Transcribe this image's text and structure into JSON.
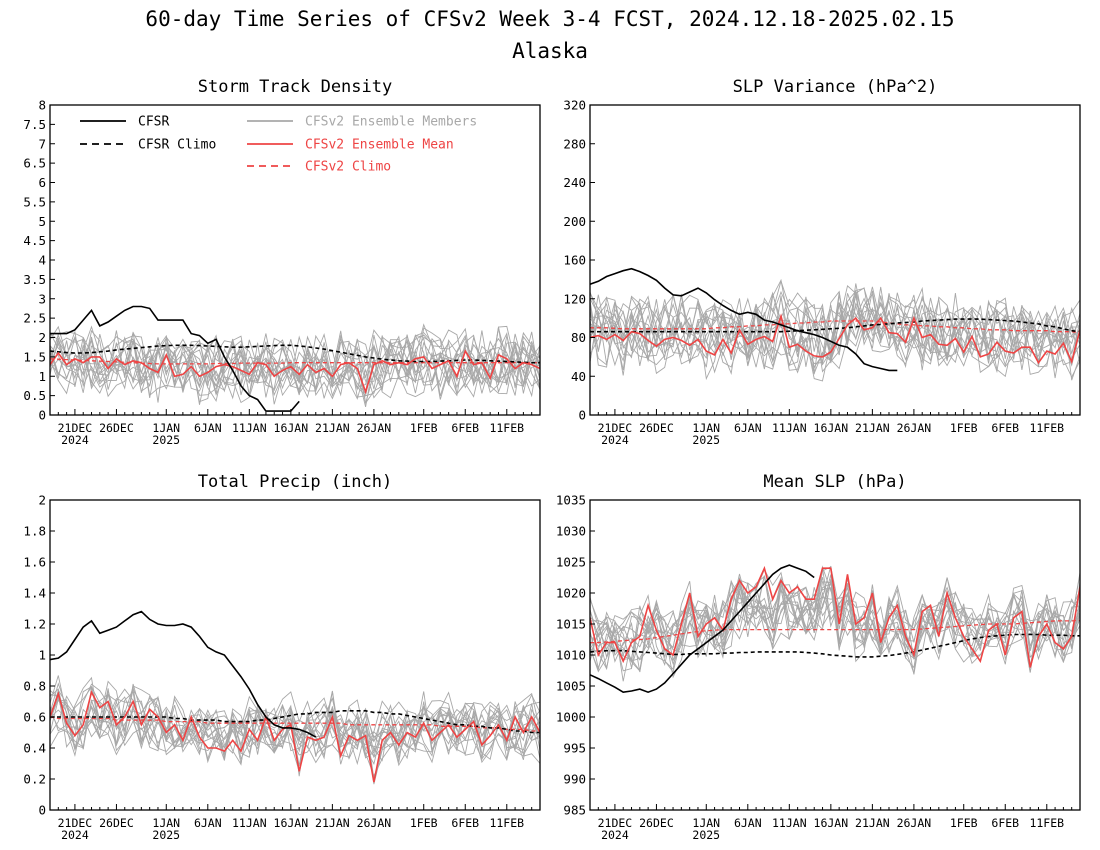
{
  "figure": {
    "title": "60-day Time Series of CFSv2 Week 3-4 FCST, 2024.12.18-2025.02.15",
    "region": "Alaska"
  },
  "colors": {
    "obs": "#000000",
    "model": "#ee4444",
    "members": "#a8a8a8",
    "axis": "#000000"
  },
  "legend": {
    "cfsr": "CFSR",
    "cfsr_climo": "CFSR Climo",
    "members": "CFSv2 Ensemble Members",
    "ens_mean": "CFSv2 Ensemble Mean",
    "cfsv2_climo": "CFSv2 Climo"
  },
  "chart_data": [
    {
      "id": "storm",
      "type": "line",
      "title": "Storm Track Density",
      "x_unit": "day index from 2024-12-18 (0-59)",
      "x_ticks": [
        {
          "x": 3,
          "label": "21DEC",
          "sub": "2024"
        },
        {
          "x": 8,
          "label": "26DEC",
          "sub": ""
        },
        {
          "x": 14,
          "label": "1JAN",
          "sub": "2025"
        },
        {
          "x": 19,
          "label": "6JAN",
          "sub": ""
        },
        {
          "x": 24,
          "label": "11JAN",
          "sub": ""
        },
        {
          "x": 29,
          "label": "16JAN",
          "sub": ""
        },
        {
          "x": 34,
          "label": "21JAN",
          "sub": ""
        },
        {
          "x": 39,
          "label": "26JAN",
          "sub": ""
        },
        {
          "x": 45,
          "label": "1FEB",
          "sub": ""
        },
        {
          "x": 50,
          "label": "6FEB",
          "sub": ""
        },
        {
          "x": 55,
          "label": "11FEB",
          "sub": ""
        }
      ],
      "ylim": [
        0,
        8
      ],
      "y_ticks": [
        0,
        0.5,
        1,
        1.5,
        2,
        2.5,
        3,
        3.5,
        4,
        4.5,
        5,
        5.5,
        6,
        6.5,
        7,
        7.5,
        8
      ],
      "y_tick_labels": [
        "0",
        "0.5",
        "1",
        "1.5",
        "2",
        "2.5",
        "3",
        "3.5",
        "4",
        "4.5",
        "5",
        "5.5",
        "6",
        "6.5",
        "7",
        "7.5",
        "8"
      ],
      "member_count": 16,
      "member_spread": 0.75,
      "cfsr": {
        "x0": 0,
        "values": [
          2.1,
          2.1,
          2.1,
          2.2,
          2.45,
          2.7,
          2.3,
          2.4,
          2.55,
          2.7,
          2.8,
          2.8,
          2.75,
          2.45,
          2.45,
          2.45,
          2.45,
          2.1,
          2.05,
          1.85,
          1.95,
          1.5,
          1.15,
          0.75,
          0.5,
          0.4,
          0.1,
          0.1,
          0.1,
          0.1,
          0.35
        ]
      },
      "cfsr_climo": [
        1.65,
        1.63,
        1.61,
        1.6,
        1.6,
        1.61,
        1.63,
        1.65,
        1.68,
        1.7,
        1.72,
        1.74,
        1.76,
        1.78,
        1.79,
        1.8,
        1.8,
        1.8,
        1.79,
        1.78,
        1.77,
        1.76,
        1.75,
        1.75,
        1.76,
        1.77,
        1.78,
        1.79,
        1.8,
        1.8,
        1.78,
        1.76,
        1.73,
        1.7,
        1.66,
        1.62,
        1.58,
        1.54,
        1.5,
        1.47,
        1.44,
        1.42,
        1.4,
        1.39,
        1.38,
        1.38,
        1.38,
        1.39,
        1.4,
        1.41,
        1.42,
        1.42,
        1.41,
        1.4,
        1.39,
        1.38,
        1.37,
        1.36,
        1.35,
        1.35
      ],
      "ens_mean": [
        1.3,
        1.6,
        1.3,
        1.45,
        1.35,
        1.5,
        1.5,
        1.2,
        1.45,
        1.3,
        1.4,
        1.35,
        1.2,
        1.1,
        1.55,
        1.0,
        1.05,
        1.25,
        1.0,
        1.1,
        1.25,
        1.3,
        1.25,
        1.15,
        1.05,
        1.35,
        1.3,
        1.0,
        1.15,
        1.25,
        1.05,
        1.3,
        1.1,
        1.2,
        1.0,
        1.3,
        1.35,
        1.2,
        0.6,
        1.3,
        1.4,
        1.3,
        1.35,
        1.3,
        1.45,
        1.5,
        1.2,
        1.3,
        1.4,
        1.0,
        1.65,
        1.3,
        1.35,
        0.95,
        1.55,
        1.45,
        1.2,
        1.35,
        1.3,
        1.2
      ],
      "cfsv2_climo": [
        1.45,
        1.44,
        1.43,
        1.42,
        1.41,
        1.4,
        1.39,
        1.38,
        1.37,
        1.36,
        1.35,
        1.34,
        1.33,
        1.32,
        1.32,
        1.32,
        1.32,
        1.32,
        1.32,
        1.32,
        1.33,
        1.33,
        1.33,
        1.34,
        1.34,
        1.34,
        1.34,
        1.34,
        1.34,
        1.35,
        1.35,
        1.35,
        1.35,
        1.35,
        1.35,
        1.35,
        1.35,
        1.35,
        1.35,
        1.35,
        1.35,
        1.35,
        1.35,
        1.35,
        1.35,
        1.35,
        1.35,
        1.35,
        1.35,
        1.35,
        1.35,
        1.35,
        1.35,
        1.35,
        1.35,
        1.35,
        1.35,
        1.35,
        1.35,
        1.35
      ]
    },
    {
      "id": "slpvar",
      "type": "line",
      "title": "SLP Variance (hPa^2)",
      "x_unit": "day index from 2024-12-18 (0-59)",
      "x_ticks": [
        {
          "x": 3,
          "label": "21DEC",
          "sub": "2024"
        },
        {
          "x": 8,
          "label": "26DEC",
          "sub": ""
        },
        {
          "x": 14,
          "label": "1JAN",
          "sub": "2025"
        },
        {
          "x": 19,
          "label": "6JAN",
          "sub": ""
        },
        {
          "x": 24,
          "label": "11JAN",
          "sub": ""
        },
        {
          "x": 29,
          "label": "16JAN",
          "sub": ""
        },
        {
          "x": 34,
          "label": "21JAN",
          "sub": ""
        },
        {
          "x": 39,
          "label": "26JAN",
          "sub": ""
        },
        {
          "x": 45,
          "label": "1FEB",
          "sub": ""
        },
        {
          "x": 50,
          "label": "6FEB",
          "sub": ""
        },
        {
          "x": 55,
          "label": "11FEB",
          "sub": ""
        }
      ],
      "ylim": [
        0,
        320
      ],
      "y_ticks": [
        0,
        40,
        80,
        120,
        160,
        200,
        240,
        280,
        320
      ],
      "y_tick_labels": [
        "0",
        "40",
        "80",
        "120",
        "160",
        "200",
        "240",
        "280",
        "320"
      ],
      "member_count": 16,
      "member_spread": 35,
      "cfsr": {
        "x0": 0,
        "values": [
          135,
          138,
          143,
          146,
          149,
          151,
          148,
          144,
          139,
          131,
          124,
          123,
          127,
          131,
          126,
          119,
          113,
          108,
          104,
          106,
          104,
          98,
          96,
          93,
          90,
          87,
          85,
          83,
          80,
          76,
          72,
          70,
          63,
          53,
          50,
          48,
          46,
          46
        ]
      },
      "cfsr_climo": [
        86,
        86,
        86,
        86,
        86,
        86,
        86,
        86,
        86,
        86,
        86,
        86,
        86,
        86,
        86,
        86,
        86,
        86,
        86,
        86,
        86,
        86,
        86,
        86,
        86.5,
        87,
        87.5,
        88,
        88.5,
        89,
        89.5,
        90,
        91,
        92,
        93,
        93.5,
        94,
        95,
        95.5,
        96,
        97,
        97.5,
        98,
        98.5,
        99,
        99,
        99,
        99,
        98.5,
        98,
        97.5,
        97,
        96,
        95,
        94,
        92,
        91,
        89,
        87,
        86
      ],
      "ens_mean": [
        80,
        82,
        78,
        83,
        77,
        86,
        84,
        77,
        71,
        78,
        80,
        77,
        72,
        78,
        66,
        62,
        78,
        64,
        88,
        73,
        78,
        81,
        76,
        102,
        70,
        73,
        66,
        61,
        60,
        65,
        79,
        93,
        100,
        88,
        90,
        100,
        85,
        84,
        75,
        100,
        80,
        83,
        73,
        72,
        79,
        65,
        81,
        60,
        63,
        75,
        66,
        64,
        70,
        70,
        54,
        66,
        63,
        74,
        55,
        88
      ],
      "cfsv2_climo": [
        90,
        90,
        90,
        89.5,
        89,
        89,
        89,
        89,
        89,
        89,
        89,
        89,
        89,
        89,
        89,
        90,
        90,
        91,
        91,
        92,
        92,
        93,
        93,
        94,
        94,
        95,
        95,
        96,
        96,
        97,
        97,
        97,
        97,
        97,
        97,
        96,
        95,
        94,
        93,
        93,
        92,
        92,
        91,
        91,
        90,
        90,
        89,
        89,
        88,
        88,
        88,
        87,
        87,
        87,
        87,
        87,
        86,
        86,
        86,
        85
      ]
    },
    {
      "id": "precip",
      "type": "line",
      "title": "Total Precip (inch)",
      "x_unit": "day index from 2024-12-18 (0-59)",
      "x_ticks": [
        {
          "x": 3,
          "label": "21DEC",
          "sub": "2024"
        },
        {
          "x": 8,
          "label": "26DEC",
          "sub": ""
        },
        {
          "x": 14,
          "label": "1JAN",
          "sub": "2025"
        },
        {
          "x": 19,
          "label": "6JAN",
          "sub": ""
        },
        {
          "x": 24,
          "label": "11JAN",
          "sub": ""
        },
        {
          "x": 29,
          "label": "16JAN",
          "sub": ""
        },
        {
          "x": 34,
          "label": "21JAN",
          "sub": ""
        },
        {
          "x": 39,
          "label": "26JAN",
          "sub": ""
        },
        {
          "x": 45,
          "label": "1FEB",
          "sub": ""
        },
        {
          "x": 50,
          "label": "6FEB",
          "sub": ""
        },
        {
          "x": 55,
          "label": "11FEB",
          "sub": ""
        }
      ],
      "ylim": [
        0,
        2
      ],
      "y_ticks": [
        0,
        0.2,
        0.4,
        0.6,
        0.8,
        1,
        1.2,
        1.4,
        1.6,
        1.8,
        2
      ],
      "y_tick_labels": [
        "0",
        "0.2",
        "0.4",
        "0.6",
        "0.8",
        "1",
        "1.2",
        "1.4",
        "1.6",
        "1.8",
        "2"
      ],
      "member_count": 16,
      "member_spread": 0.17,
      "cfsr": {
        "x0": 0,
        "values": [
          0.97,
          0.98,
          1.02,
          1.1,
          1.18,
          1.22,
          1.14,
          1.16,
          1.18,
          1.22,
          1.26,
          1.28,
          1.23,
          1.2,
          1.19,
          1.19,
          1.2,
          1.18,
          1.12,
          1.05,
          1.02,
          1.0,
          0.93,
          0.86,
          0.78,
          0.68,
          0.6,
          0.55,
          0.53,
          0.53,
          0.52,
          0.5,
          0.47
        ]
      },
      "cfsr_climo": [
        0.6,
        0.6,
        0.6,
        0.6,
        0.6,
        0.6,
        0.6,
        0.6,
        0.6,
        0.6,
        0.6,
        0.6,
        0.6,
        0.6,
        0.6,
        0.59,
        0.59,
        0.58,
        0.58,
        0.58,
        0.58,
        0.57,
        0.57,
        0.57,
        0.57,
        0.58,
        0.58,
        0.59,
        0.6,
        0.61,
        0.62,
        0.62,
        0.63,
        0.63,
        0.63,
        0.64,
        0.64,
        0.64,
        0.64,
        0.63,
        0.63,
        0.62,
        0.62,
        0.61,
        0.6,
        0.59,
        0.58,
        0.57,
        0.56,
        0.55,
        0.55,
        0.54,
        0.54,
        0.53,
        0.53,
        0.52,
        0.51,
        0.51,
        0.5,
        0.5
      ],
      "ens_mean": [
        0.6,
        0.75,
        0.56,
        0.48,
        0.55,
        0.76,
        0.66,
        0.7,
        0.55,
        0.6,
        0.7,
        0.55,
        0.65,
        0.6,
        0.5,
        0.55,
        0.45,
        0.6,
        0.47,
        0.4,
        0.4,
        0.38,
        0.45,
        0.38,
        0.52,
        0.45,
        0.6,
        0.45,
        0.52,
        0.55,
        0.25,
        0.47,
        0.45,
        0.47,
        0.6,
        0.35,
        0.48,
        0.45,
        0.48,
        0.18,
        0.45,
        0.5,
        0.42,
        0.5,
        0.47,
        0.56,
        0.45,
        0.5,
        0.55,
        0.47,
        0.52,
        0.57,
        0.42,
        0.48,
        0.55,
        0.45,
        0.6,
        0.5,
        0.6,
        0.5
      ],
      "cfsv2_climo": [
        0.6,
        0.59,
        0.59,
        0.59,
        0.59,
        0.59,
        0.59,
        0.59,
        0.58,
        0.58,
        0.58,
        0.58,
        0.58,
        0.58,
        0.57,
        0.57,
        0.57,
        0.57,
        0.57,
        0.56,
        0.56,
        0.56,
        0.56,
        0.56,
        0.56,
        0.56,
        0.56,
        0.56,
        0.56,
        0.56,
        0.56,
        0.56,
        0.56,
        0.56,
        0.56,
        0.56,
        0.55,
        0.55,
        0.55,
        0.55,
        0.55,
        0.55,
        0.55,
        0.55,
        0.55,
        0.55,
        0.55,
        0.54,
        0.54,
        0.54,
        0.54,
        0.54,
        0.53,
        0.53,
        0.53,
        0.52,
        0.52,
        0.52,
        0.51,
        0.51
      ]
    },
    {
      "id": "meanslp",
      "type": "line",
      "title": "Mean SLP (hPa)",
      "x_unit": "day index from 2024-12-18 (0-59)",
      "x_ticks": [
        {
          "x": 3,
          "label": "21DEC",
          "sub": "2024"
        },
        {
          "x": 8,
          "label": "26DEC",
          "sub": ""
        },
        {
          "x": 14,
          "label": "1JAN",
          "sub": "2025"
        },
        {
          "x": 19,
          "label": "6JAN",
          "sub": ""
        },
        {
          "x": 24,
          "label": "11JAN",
          "sub": ""
        },
        {
          "x": 29,
          "label": "16JAN",
          "sub": ""
        },
        {
          "x": 34,
          "label": "21JAN",
          "sub": ""
        },
        {
          "x": 39,
          "label": "26JAN",
          "sub": ""
        },
        {
          "x": 45,
          "label": "1FEB",
          "sub": ""
        },
        {
          "x": 50,
          "label": "6FEB",
          "sub": ""
        },
        {
          "x": 55,
          "label": "11FEB",
          "sub": ""
        }
      ],
      "ylim": [
        985,
        1035
      ],
      "y_ticks": [
        985,
        990,
        995,
        1000,
        1005,
        1010,
        1015,
        1020,
        1025,
        1030,
        1035
      ],
      "y_tick_labels": [
        "985",
        "990",
        "995",
        "1000",
        "1005",
        "1010",
        "1015",
        "1020",
        "1025",
        "1030",
        "1035"
      ],
      "member_count": 16,
      "member_spread": 4.5,
      "cfsr": {
        "x0": 0,
        "values": [
          1006.8,
          1006.2,
          1005.5,
          1004.8,
          1004,
          1004.2,
          1004.5,
          1004,
          1004.5,
          1005.5,
          1007,
          1008.5,
          1010,
          1011,
          1012,
          1013,
          1014,
          1015.5,
          1017,
          1018.5,
          1020,
          1021.5,
          1023,
          1024,
          1024.5,
          1024,
          1023.5,
          1022.5
        ]
      },
      "cfsr_climo": [
        1010.5,
        1010.6,
        1010.7,
        1010.7,
        1010.7,
        1010.6,
        1010.5,
        1010.4,
        1010.3,
        1010.2,
        1010.1,
        1010.1,
        1010.2,
        1010.2,
        1010.2,
        1010.2,
        1010.3,
        1010.3,
        1010.4,
        1010.4,
        1010.5,
        1010.5,
        1010.5,
        1010.5,
        1010.5,
        1010.5,
        1010.4,
        1010.3,
        1010.2,
        1010.0,
        1009.9,
        1009.8,
        1009.7,
        1009.7,
        1009.7,
        1009.8,
        1009.9,
        1010.1,
        1010.3,
        1010.5,
        1010.8,
        1011.1,
        1011.4,
        1011.7,
        1012.0,
        1012.3,
        1012.6,
        1012.8,
        1013.0,
        1013.1,
        1013.2,
        1013.3,
        1013.3,
        1013.3,
        1013.3,
        1013.2,
        1013.2,
        1013.2,
        1013.1,
        1013.1
      ],
      "ens_mean": [
        1016,
        1010,
        1012,
        1012,
        1009,
        1012,
        1013,
        1018,
        1014,
        1011,
        1010,
        1015,
        1020,
        1013,
        1015,
        1016,
        1014,
        1019,
        1022,
        1020,
        1021,
        1024,
        1019,
        1022,
        1020,
        1021,
        1019,
        1019,
        1024,
        1024,
        1015,
        1023,
        1015,
        1016,
        1020,
        1012,
        1016,
        1018,
        1013,
        1010,
        1017,
        1018,
        1013,
        1020,
        1016,
        1013,
        1011,
        1009,
        1014,
        1015,
        1010,
        1016,
        1017,
        1008,
        1013,
        1015,
        1012,
        1011,
        1013,
        1021
      ],
      "cfsv2_climo": [
        1012,
        1012,
        1012.1,
        1012.2,
        1012.3,
        1012.4,
        1012.5,
        1012.6,
        1012.8,
        1013,
        1013.2,
        1013.4,
        1013.6,
        1013.8,
        1013.9,
        1014,
        1014.1,
        1014.1,
        1014.1,
        1014.1,
        1014.1,
        1014.1,
        1014.1,
        1014.1,
        1014.1,
        1014.1,
        1014.1,
        1014.1,
        1014.1,
        1014.1,
        1014.1,
        1014.1,
        1014.1,
        1014.1,
        1014.1,
        1014.1,
        1014.1,
        1014.1,
        1014.1,
        1014.1,
        1014.2,
        1014.3,
        1014.4,
        1014.5,
        1014.6,
        1014.7,
        1014.8,
        1014.9,
        1015,
        1015,
        1015,
        1015,
        1015.1,
        1015.2,
        1015.3,
        1015.4,
        1015.5,
        1015.5,
        1015.5,
        1015.6
      ]
    }
  ]
}
